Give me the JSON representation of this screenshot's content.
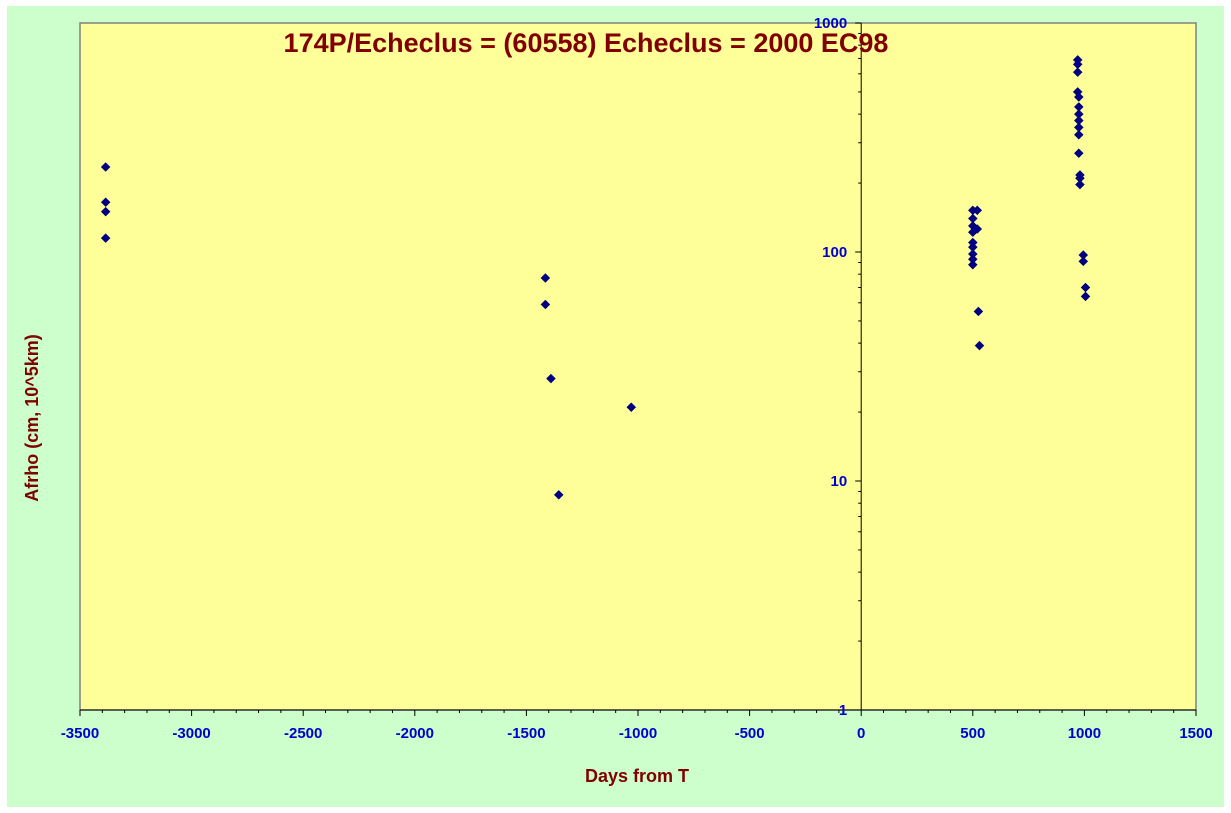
{
  "chart_data": {
    "type": "scatter",
    "title": "174P/Echeclus = (60558) Echeclus = 2000 EC98",
    "xlabel": "Days from T",
    "ylabel": "Afrho (cm, 10^5km)",
    "xlim": [
      -3500,
      1500
    ],
    "ylim": [
      1,
      1000
    ],
    "yscale": "log",
    "x_ticks": [
      "-3500",
      "-3000",
      "-2500",
      "-2000",
      "-1500",
      "-1000",
      "-500",
      "0",
      "500",
      "1000",
      "1500"
    ],
    "y_ticks": [
      "1",
      "10",
      "100",
      "1000"
    ],
    "grid": false,
    "plot_background": "#ffff99",
    "outer_background": "#ccffcc",
    "marker_color": "#000080",
    "series": [
      {
        "points": [
          [
            -3385,
            235
          ],
          [
            -3385,
            165
          ],
          [
            -3385,
            150
          ],
          [
            -3385,
            115
          ],
          [
            -1415,
            77
          ],
          [
            -1415,
            59
          ],
          [
            -1390,
            28
          ],
          [
            -1030,
            21
          ],
          [
            -1355,
            8.7
          ],
          [
            500,
            152
          ],
          [
            500,
            140
          ],
          [
            500,
            130
          ],
          [
            500,
            122
          ],
          [
            500,
            110
          ],
          [
            500,
            105
          ],
          [
            500,
            98
          ],
          [
            500,
            93
          ],
          [
            500,
            88
          ],
          [
            520,
            152
          ],
          [
            520,
            126
          ],
          [
            525,
            55
          ],
          [
            530,
            39
          ],
          [
            970,
            690
          ],
          [
            970,
            660
          ],
          [
            970,
            610
          ],
          [
            970,
            500
          ],
          [
            975,
            475
          ],
          [
            975,
            430
          ],
          [
            975,
            400
          ],
          [
            975,
            375
          ],
          [
            975,
            350
          ],
          [
            975,
            325
          ],
          [
            975,
            270
          ],
          [
            980,
            217
          ],
          [
            980,
            210
          ],
          [
            980,
            197
          ],
          [
            995,
            97
          ],
          [
            995,
            91
          ],
          [
            1005,
            70
          ],
          [
            1005,
            64
          ]
        ]
      }
    ]
  }
}
